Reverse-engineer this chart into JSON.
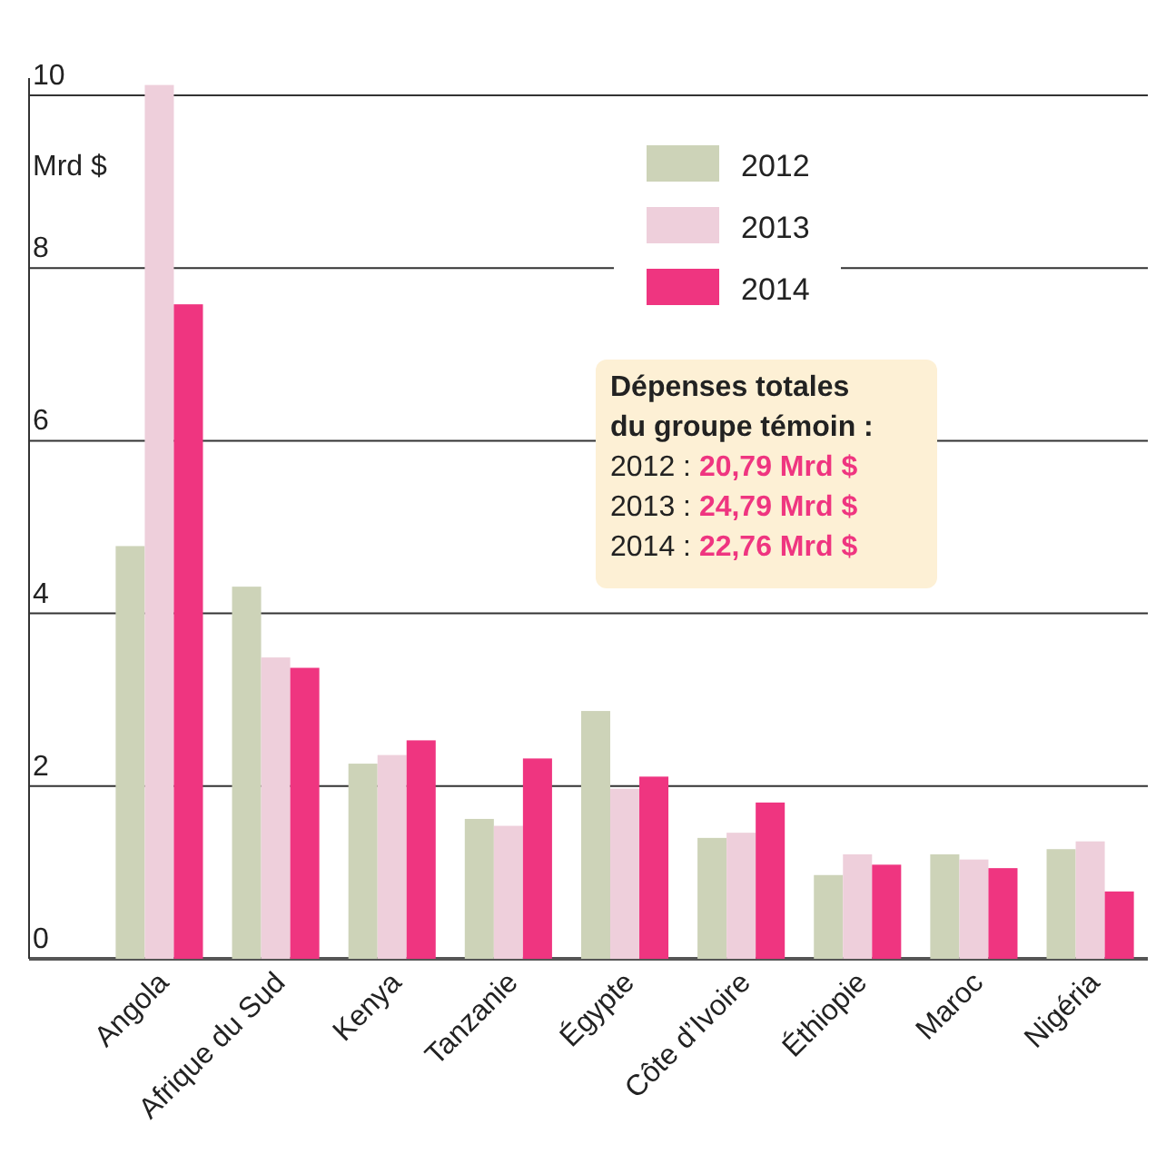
{
  "chart_data": {
    "type": "bar",
    "ylabel": "Mrd $",
    "categories": [
      "Angola",
      "Afrique du Sud",
      "Kenya",
      "Tanzanie",
      "Égypte",
      "Côte d’Ivoire",
      "Éthiopie",
      "Maroc",
      "Nigéria"
    ],
    "series": [
      {
        "name": "2012",
        "color": "#cdd3b8",
        "values": [
          4.78,
          4.31,
          2.26,
          1.62,
          2.87,
          1.4,
          0.97,
          1.21,
          1.27
        ]
      },
      {
        "name": "2013",
        "color": "#eecfdb",
        "values": [
          10.12,
          3.49,
          2.36,
          1.54,
          1.97,
          1.46,
          1.21,
          1.15,
          1.36
        ]
      },
      {
        "name": "2014",
        "color": "#ef3580",
        "values": [
          7.58,
          3.37,
          2.53,
          2.32,
          2.11,
          1.81,
          1.09,
          1.05,
          0.78
        ]
      }
    ],
    "ylim": [
      0,
      10.2
    ],
    "yticks": [
      0,
      2,
      4,
      6,
      8,
      10
    ],
    "grid": "y",
    "legend": "top right",
    "annotations": [
      "Dépenses totales du groupe témoin :",
      "2012 : 20,79 Mrd $",
      "2013 : 24,79 Mrd $",
      "2014 : 22,76 Mrd $"
    ]
  }
}
